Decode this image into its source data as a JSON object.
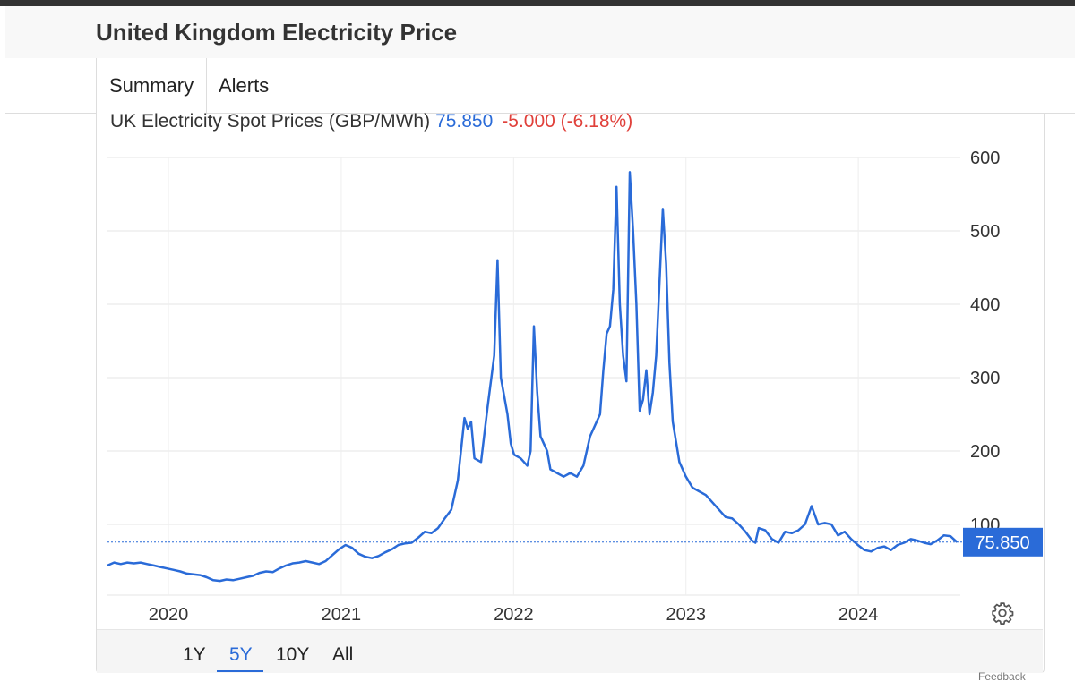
{
  "header": {
    "title": "United Kingdom Electricity Price"
  },
  "tabs": [
    {
      "label": "Summary"
    },
    {
      "label": "Alerts"
    }
  ],
  "series_info": {
    "name": "UK Electricity Spot Prices (GBP/MWh)",
    "price": "75.850",
    "change": "-5.000 (-6.18%)"
  },
  "last_value_label": "75.850",
  "range_buttons": [
    {
      "label": "1Y"
    },
    {
      "label": "5Y"
    },
    {
      "label": "10Y"
    },
    {
      "label": "All"
    }
  ],
  "active_range": "5Y",
  "footer_fragment": "Feedback",
  "colors": {
    "line": "#2a6bd8",
    "change_negative": "#e0403a",
    "label_bg": "#2a6bd8"
  },
  "icons": {
    "settings": "gear-icon"
  },
  "chart_data": {
    "type": "line",
    "title": "UK Electricity Spot Prices (GBP/MWh)",
    "xlabel": "",
    "ylabel": "",
    "x_ticks": [
      "2020",
      "2021",
      "2022",
      "2023",
      "2024"
    ],
    "y_ticks": [
      100,
      200,
      300,
      400,
      500,
      600
    ],
    "ylim": [
      0,
      600
    ],
    "grid": true,
    "y_axis_side": "right",
    "last_value": 75.85,
    "series": [
      {
        "values": [
          [
            "2019-08-25",
            44
          ],
          [
            "2019-09-08",
            48
          ],
          [
            "2019-09-22",
            46
          ],
          [
            "2019-10-06",
            48
          ],
          [
            "2019-10-20",
            47
          ],
          [
            "2019-11-03",
            48
          ],
          [
            "2019-11-17",
            46
          ],
          [
            "2019-12-01",
            44
          ],
          [
            "2019-12-15",
            42
          ],
          [
            "2019-12-29",
            40
          ],
          [
            "2020-01-12",
            38
          ],
          [
            "2020-01-26",
            36
          ],
          [
            "2020-02-09",
            33
          ],
          [
            "2020-02-23",
            32
          ],
          [
            "2020-03-08",
            31
          ],
          [
            "2020-03-22",
            28
          ],
          [
            "2020-04-05",
            24
          ],
          [
            "2020-04-19",
            23
          ],
          [
            "2020-05-03",
            25
          ],
          [
            "2020-05-17",
            24
          ],
          [
            "2020-05-31",
            26
          ],
          [
            "2020-06-14",
            28
          ],
          [
            "2020-06-28",
            30
          ],
          [
            "2020-07-12",
            34
          ],
          [
            "2020-07-26",
            36
          ],
          [
            "2020-08-09",
            35
          ],
          [
            "2020-08-23",
            40
          ],
          [
            "2020-09-06",
            44
          ],
          [
            "2020-09-20",
            47
          ],
          [
            "2020-10-04",
            48
          ],
          [
            "2020-10-18",
            50
          ],
          [
            "2020-11-01",
            48
          ],
          [
            "2020-11-15",
            46
          ],
          [
            "2020-11-29",
            50
          ],
          [
            "2020-12-13",
            58
          ],
          [
            "2020-12-27",
            66
          ],
          [
            "2021-01-10",
            72
          ],
          [
            "2021-01-24",
            68
          ],
          [
            "2021-02-07",
            60
          ],
          [
            "2021-02-21",
            56
          ],
          [
            "2021-03-07",
            54
          ],
          [
            "2021-03-21",
            57
          ],
          [
            "2021-04-04",
            62
          ],
          [
            "2021-04-18",
            66
          ],
          [
            "2021-05-02",
            72
          ],
          [
            "2021-05-16",
            74
          ],
          [
            "2021-05-30",
            75
          ],
          [
            "2021-06-13",
            82
          ],
          [
            "2021-06-27",
            90
          ],
          [
            "2021-07-11",
            88
          ],
          [
            "2021-07-25",
            95
          ],
          [
            "2021-08-08",
            108
          ],
          [
            "2021-08-22",
            120
          ],
          [
            "2021-09-05",
            160
          ],
          [
            "2021-09-19",
            245
          ],
          [
            "2021-09-26",
            230
          ],
          [
            "2021-10-03",
            240
          ],
          [
            "2021-10-10",
            190
          ],
          [
            "2021-10-24",
            185
          ],
          [
            "2021-11-07",
            260
          ],
          [
            "2021-11-21",
            330
          ],
          [
            "2021-11-28",
            460
          ],
          [
            "2021-12-05",
            300
          ],
          [
            "2021-12-19",
            250
          ],
          [
            "2021-12-26",
            210
          ],
          [
            "2022-01-02",
            195
          ],
          [
            "2022-01-16",
            190
          ],
          [
            "2022-01-30",
            180
          ],
          [
            "2022-02-06",
            200
          ],
          [
            "2022-02-13",
            370
          ],
          [
            "2022-02-20",
            280
          ],
          [
            "2022-02-27",
            220
          ],
          [
            "2022-03-06",
            210
          ],
          [
            "2022-03-13",
            200
          ],
          [
            "2022-03-20",
            175
          ],
          [
            "2022-04-03",
            170
          ],
          [
            "2022-04-17",
            165
          ],
          [
            "2022-05-01",
            170
          ],
          [
            "2022-05-15",
            165
          ],
          [
            "2022-05-29",
            180
          ],
          [
            "2022-06-12",
            220
          ],
          [
            "2022-06-26",
            240
          ],
          [
            "2022-07-03",
            250
          ],
          [
            "2022-07-10",
            310
          ],
          [
            "2022-07-17",
            360
          ],
          [
            "2022-07-24",
            370
          ],
          [
            "2022-07-31",
            420
          ],
          [
            "2022-08-07",
            560
          ],
          [
            "2022-08-14",
            400
          ],
          [
            "2022-08-21",
            330
          ],
          [
            "2022-08-28",
            295
          ],
          [
            "2022-09-04",
            580
          ],
          [
            "2022-09-11",
            500
          ],
          [
            "2022-09-18",
            400
          ],
          [
            "2022-09-25",
            255
          ],
          [
            "2022-10-02",
            270
          ],
          [
            "2022-10-09",
            310
          ],
          [
            "2022-10-16",
            250
          ],
          [
            "2022-10-23",
            280
          ],
          [
            "2022-10-30",
            330
          ],
          [
            "2022-11-06",
            430
          ],
          [
            "2022-11-13",
            530
          ],
          [
            "2022-11-20",
            455
          ],
          [
            "2022-11-27",
            320
          ],
          [
            "2022-12-04",
            240
          ],
          [
            "2022-12-18",
            185
          ],
          [
            "2023-01-01",
            165
          ],
          [
            "2023-01-15",
            150
          ],
          [
            "2023-01-29",
            145
          ],
          [
            "2023-02-12",
            140
          ],
          [
            "2023-02-26",
            130
          ],
          [
            "2023-03-12",
            120
          ],
          [
            "2023-03-26",
            110
          ],
          [
            "2023-04-09",
            108
          ],
          [
            "2023-04-23",
            100
          ],
          [
            "2023-05-07",
            90
          ],
          [
            "2023-05-21",
            78
          ],
          [
            "2023-05-28",
            75
          ],
          [
            "2023-06-04",
            95
          ],
          [
            "2023-06-18",
            92
          ],
          [
            "2023-07-02",
            80
          ],
          [
            "2023-07-16",
            75
          ],
          [
            "2023-07-30",
            90
          ],
          [
            "2023-08-13",
            88
          ],
          [
            "2023-08-27",
            92
          ],
          [
            "2023-09-10",
            100
          ],
          [
            "2023-09-24",
            125
          ],
          [
            "2023-10-08",
            100
          ],
          [
            "2023-10-22",
            102
          ],
          [
            "2023-11-05",
            100
          ],
          [
            "2023-11-19",
            85
          ],
          [
            "2023-12-03",
            90
          ],
          [
            "2023-12-17",
            80
          ],
          [
            "2023-12-31",
            72
          ],
          [
            "2024-01-14",
            65
          ],
          [
            "2024-01-28",
            63
          ],
          [
            "2024-02-11",
            68
          ],
          [
            "2024-02-25",
            70
          ],
          [
            "2024-03-10",
            65
          ],
          [
            "2024-03-24",
            72
          ],
          [
            "2024-04-07",
            75
          ],
          [
            "2024-04-21",
            80
          ],
          [
            "2024-05-05",
            78
          ],
          [
            "2024-05-19",
            75
          ],
          [
            "2024-06-02",
            73
          ],
          [
            "2024-06-16",
            78
          ],
          [
            "2024-06-30",
            85
          ],
          [
            "2024-07-14",
            84
          ],
          [
            "2024-07-28",
            75.85
          ]
        ]
      }
    ]
  }
}
